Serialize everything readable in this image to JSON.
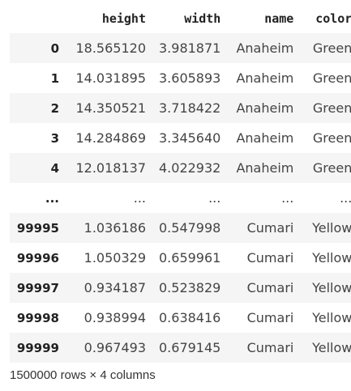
{
  "dataframe": {
    "index_header": "",
    "columns": [
      "height",
      "width",
      "name",
      "color"
    ],
    "rows": [
      {
        "index": "0",
        "cells": [
          "18.565120",
          "3.981871",
          "Anaheim",
          "Green"
        ]
      },
      {
        "index": "1",
        "cells": [
          "14.031895",
          "3.605893",
          "Anaheim",
          "Green"
        ]
      },
      {
        "index": "2",
        "cells": [
          "14.350521",
          "3.718422",
          "Anaheim",
          "Green"
        ]
      },
      {
        "index": "3",
        "cells": [
          "14.284869",
          "3.345640",
          "Anaheim",
          "Green"
        ]
      },
      {
        "index": "4",
        "cells": [
          "12.018137",
          "4.022932",
          "Anaheim",
          "Green"
        ]
      },
      {
        "index": "...",
        "cells": [
          "...",
          "...",
          "...",
          "..."
        ]
      },
      {
        "index": "99995",
        "cells": [
          "1.036186",
          "0.547998",
          "Cumari",
          "Yellow"
        ]
      },
      {
        "index": "99996",
        "cells": [
          "1.050329",
          "0.659961",
          "Cumari",
          "Yellow"
        ]
      },
      {
        "index": "99997",
        "cells": [
          "0.934187",
          "0.523829",
          "Cumari",
          "Yellow"
        ]
      },
      {
        "index": "99998",
        "cells": [
          "0.938994",
          "0.638416",
          "Cumari",
          "Yellow"
        ]
      },
      {
        "index": "99999",
        "cells": [
          "0.967493",
          "0.679145",
          "Cumari",
          "Yellow"
        ]
      }
    ],
    "summary": "1500000 rows × 4 columns"
  },
  "colors": {
    "stripe": "#f5f5f5",
    "background": "#ffffff"
  }
}
